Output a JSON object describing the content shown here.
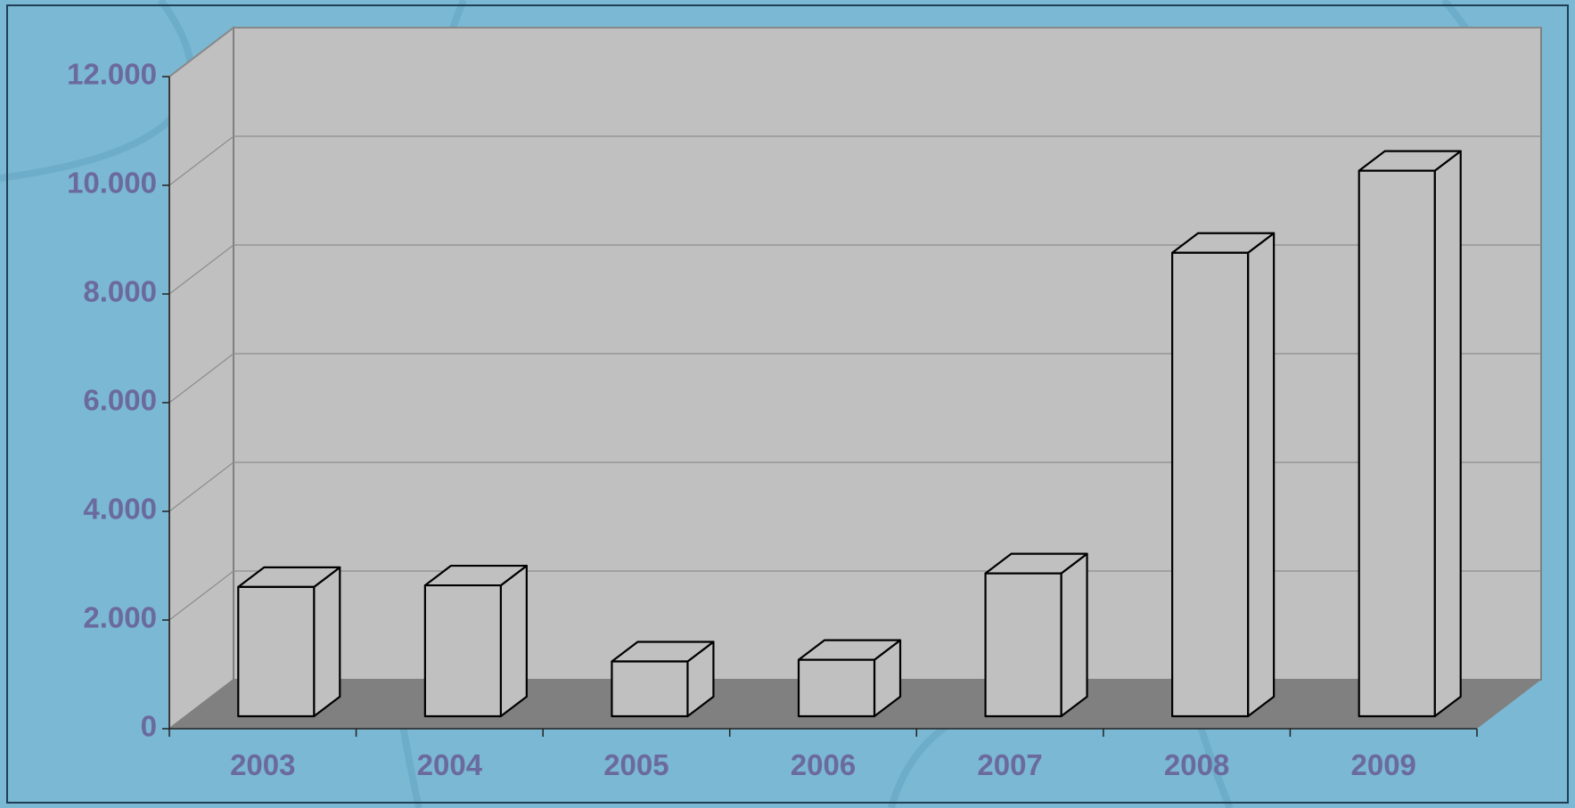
{
  "chart_data": {
    "type": "bar",
    "style": "3d-column",
    "categories": [
      "2003",
      "2004",
      "2005",
      "2006",
      "2007",
      "2008",
      "2009"
    ],
    "values": [
      3100,
      3130,
      1730,
      1760,
      3350,
      9250,
      10760
    ],
    "ylim": [
      0,
      12000
    ],
    "yticks": [
      0,
      2000,
      4000,
      6000,
      8000,
      10000,
      12000
    ],
    "ytick_labels": [
      "0",
      "2.000",
      "4.000",
      "6.000",
      "8.000",
      "10.000",
      "12.000"
    ],
    "grid": true,
    "legend": "none",
    "title": "",
    "xlabel": "",
    "ylabel": ""
  },
  "colors": {
    "background": "#7bb8d3",
    "back_wall": "#c0c0c0",
    "side_wall": "#c0c0c0",
    "floor": "#808080",
    "bar_fill": "#c0c0c0",
    "bar_outline": "#000000",
    "tick_label": "#6b6a9e",
    "gridline": "#8c8c8c"
  }
}
